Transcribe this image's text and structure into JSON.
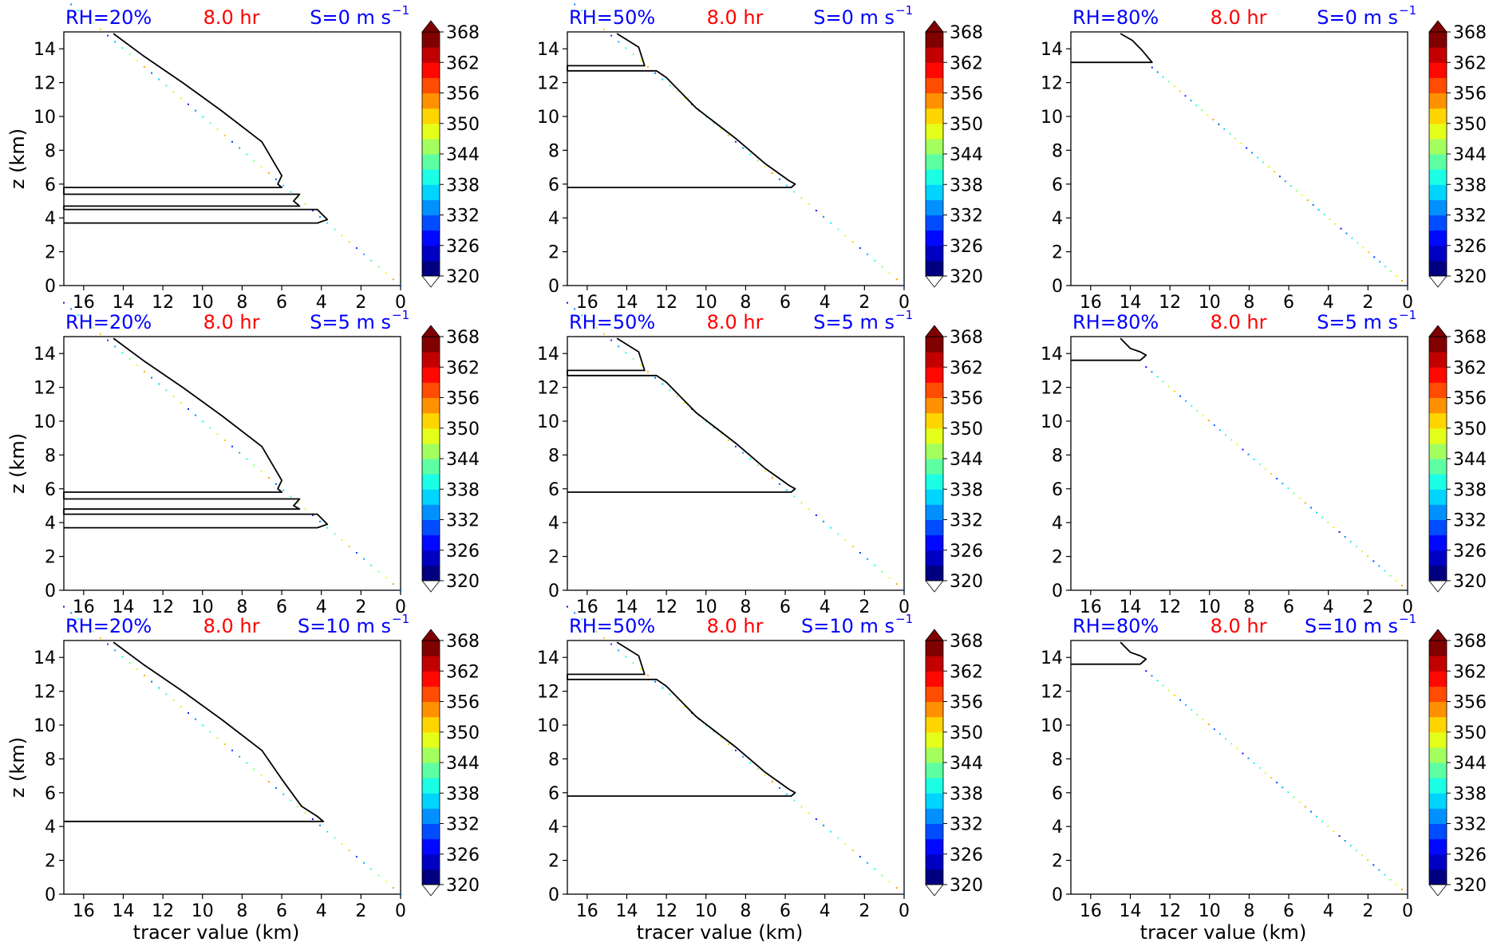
{
  "colors": {
    "rh_title": "#0000ff",
    "time_title": "#ff0000",
    "shear_title": "#0000ff",
    "contour": "#000000"
  },
  "colorbar": {
    "ticks": [
      "320",
      "326",
      "332",
      "338",
      "344",
      "350",
      "356",
      "362",
      "368"
    ],
    "min": 320,
    "max": 368,
    "colormap": "jet",
    "extend": "both"
  },
  "chart_data": [
    {
      "type": "contour",
      "rh_label": "RH=20%",
      "time_label": "8.0 hr",
      "shear_label": "S=0 m s",
      "xlabel": "",
      "ylabel": "z (km)",
      "xlim": [
        17,
        0
      ],
      "ylim": [
        0,
        15
      ],
      "xticks": [
        "16",
        "14",
        "12",
        "10",
        "8",
        "6",
        "4",
        "2",
        "0"
      ],
      "yticks": [
        "0",
        "2",
        "4",
        "6",
        "8",
        "10",
        "12",
        "14"
      ],
      "diagonal_x": [
        17,
        0
      ],
      "contour_x": [
        14.5,
        13,
        11,
        9,
        7,
        6,
        6.2,
        6,
        17,
        17,
        5.1,
        5.4,
        5.1,
        17,
        17,
        4.2,
        3.7,
        4.2,
        17
      ],
      "contour_y": [
        14.9,
        13.6,
        12,
        10.3,
        8.5,
        6.5,
        6.0,
        5.8,
        5.8,
        5.4,
        5.4,
        5.0,
        4.7,
        4.7,
        4.5,
        4.5,
        3.9,
        3.7,
        3.7
      ]
    },
    {
      "type": "contour",
      "rh_label": "RH=50%",
      "time_label": "8.0 hr",
      "shear_label": "S=0 m s",
      "xlabel": "",
      "ylabel": "",
      "xlim": [
        17,
        0
      ],
      "ylim": [
        0,
        15
      ],
      "xticks": [
        "16",
        "14",
        "12",
        "10",
        "8",
        "6",
        "4",
        "2",
        "0"
      ],
      "yticks": [
        "0",
        "2",
        "4",
        "6",
        "8",
        "10",
        "12",
        "14"
      ],
      "diagonal_x": [
        17,
        0
      ],
      "contour_x": [
        14.5,
        13.4,
        13.1,
        17,
        17,
        12.5,
        12.0,
        10.5,
        8.5,
        7,
        5.8,
        5.5,
        5.7,
        17
      ],
      "contour_y": [
        14.9,
        14.1,
        13.0,
        13.0,
        12.7,
        12.7,
        12.3,
        10.5,
        8.7,
        7.2,
        6.2,
        6.0,
        5.8,
        5.8
      ]
    },
    {
      "type": "contour",
      "rh_label": "RH=80%",
      "time_label": "8.0 hr",
      "shear_label": "S=0 m s",
      "xlabel": "",
      "ylabel": "",
      "xlim": [
        17,
        0
      ],
      "ylim": [
        0,
        15
      ],
      "xticks": [
        "16",
        "14",
        "12",
        "10",
        "8",
        "6",
        "4",
        "2",
        "0"
      ],
      "yticks": [
        "0",
        "2",
        "4",
        "6",
        "8",
        "10",
        "12",
        "14"
      ],
      "diagonal_x": [
        12.9,
        0
      ],
      "contour_x": [
        14.5,
        13.9,
        13.4,
        12.9,
        17
      ],
      "contour_y": [
        14.9,
        14.5,
        13.9,
        13.2,
        13.2
      ]
    },
    {
      "type": "contour",
      "rh_label": "RH=20%",
      "time_label": "8.0 hr",
      "shear_label": "S=5 m s",
      "xlabel": "",
      "ylabel": "z (km)",
      "xlim": [
        17,
        0
      ],
      "ylim": [
        0,
        15
      ],
      "xticks": [
        "16",
        "14",
        "12",
        "10",
        "8",
        "6",
        "4",
        "2",
        "0"
      ],
      "yticks": [
        "0",
        "2",
        "4",
        "6",
        "8",
        "10",
        "12",
        "14"
      ],
      "diagonal_x": [
        17,
        0
      ],
      "contour_x": [
        14.5,
        13,
        11,
        9,
        7,
        6,
        6.2,
        6,
        17,
        17,
        5.1,
        5.4,
        5.1,
        17,
        17,
        4.2,
        3.7,
        4.2,
        17
      ],
      "contour_y": [
        14.9,
        13.6,
        12,
        10.3,
        8.5,
        6.5,
        6.0,
        5.8,
        5.8,
        5.4,
        5.4,
        5.0,
        4.8,
        4.8,
        4.5,
        4.5,
        3.9,
        3.7,
        3.7
      ]
    },
    {
      "type": "contour",
      "rh_label": "RH=50%",
      "time_label": "8.0 hr",
      "shear_label": "S=5 m s",
      "xlabel": "",
      "ylabel": "",
      "xlim": [
        17,
        0
      ],
      "ylim": [
        0,
        15
      ],
      "xticks": [
        "16",
        "14",
        "12",
        "10",
        "8",
        "6",
        "4",
        "2",
        "0"
      ],
      "yticks": [
        "0",
        "2",
        "4",
        "6",
        "8",
        "10",
        "12",
        "14"
      ],
      "diagonal_x": [
        17,
        0
      ],
      "contour_x": [
        14.5,
        13.4,
        13.1,
        17,
        17,
        12.5,
        12.0,
        10.5,
        8.5,
        7,
        5.8,
        5.5,
        5.7,
        17
      ],
      "contour_y": [
        14.9,
        14.1,
        13.0,
        13.0,
        12.7,
        12.7,
        12.3,
        10.5,
        8.7,
        7.2,
        6.2,
        6.0,
        5.8,
        5.8
      ]
    },
    {
      "type": "contour",
      "rh_label": "RH=80%",
      "time_label": "8.0 hr",
      "shear_label": "S=5 m s",
      "xlabel": "",
      "ylabel": "",
      "xlim": [
        17,
        0
      ],
      "ylim": [
        0,
        15
      ],
      "xticks": [
        "16",
        "14",
        "12",
        "10",
        "8",
        "6",
        "4",
        "2",
        "0"
      ],
      "yticks": [
        "0",
        "2",
        "4",
        "6",
        "8",
        "10",
        "12",
        "14"
      ],
      "diagonal_x": [
        13.2,
        0
      ],
      "contour_x": [
        14.5,
        14.0,
        13.5,
        13.2,
        13.5,
        17
      ],
      "contour_y": [
        14.9,
        14.3,
        14.1,
        13.9,
        13.6,
        13.6
      ]
    },
    {
      "type": "contour",
      "rh_label": "RH=20%",
      "time_label": "8.0 hr",
      "shear_label": "S=10 m s",
      "xlabel": "tracer value (km)",
      "ylabel": "z (km)",
      "xlim": [
        17,
        0
      ],
      "ylim": [
        0,
        15
      ],
      "xticks": [
        "16",
        "14",
        "12",
        "10",
        "8",
        "6",
        "4",
        "2",
        "0"
      ],
      "yticks": [
        "0",
        "2",
        "4",
        "6",
        "8",
        "10",
        "12",
        "14"
      ],
      "diagonal_x": [
        17,
        0
      ],
      "contour_x": [
        14.5,
        13,
        11,
        9,
        7,
        6,
        5,
        4.2,
        3.9,
        17
      ],
      "contour_y": [
        14.9,
        13.6,
        12,
        10.3,
        8.5,
        6.8,
        5.2,
        4.6,
        4.3,
        4.3
      ]
    },
    {
      "type": "contour",
      "rh_label": "RH=50%",
      "time_label": "8.0 hr",
      "shear_label": "S=10 m s",
      "xlabel": "tracer value (km)",
      "ylabel": "",
      "xlim": [
        17,
        0
      ],
      "ylim": [
        0,
        15
      ],
      "xticks": [
        "16",
        "14",
        "12",
        "10",
        "8",
        "6",
        "4",
        "2",
        "0"
      ],
      "yticks": [
        "0",
        "2",
        "4",
        "6",
        "8",
        "10",
        "12",
        "14"
      ],
      "diagonal_x": [
        17,
        0
      ],
      "contour_x": [
        14.5,
        13.4,
        13.1,
        17,
        17,
        12.5,
        12.0,
        10.5,
        8.5,
        7,
        5.8,
        5.5,
        5.7,
        17
      ],
      "contour_y": [
        14.9,
        14.1,
        13.0,
        13.0,
        12.7,
        12.7,
        12.3,
        10.5,
        8.7,
        7.2,
        6.2,
        6.0,
        5.8,
        5.8
      ]
    },
    {
      "type": "contour",
      "rh_label": "RH=80%",
      "time_label": "8.0 hr",
      "shear_label": "S=10 m s",
      "xlabel": "tracer value (km)",
      "ylabel": "",
      "xlim": [
        17,
        0
      ],
      "ylim": [
        0,
        15
      ],
      "xticks": [
        "16",
        "14",
        "12",
        "10",
        "8",
        "6",
        "4",
        "2",
        "0"
      ],
      "yticks": [
        "0",
        "2",
        "4",
        "6",
        "8",
        "10",
        "12",
        "14"
      ],
      "diagonal_x": [
        13.2,
        0
      ],
      "contour_x": [
        14.5,
        14.0,
        13.5,
        13.2,
        13.5,
        17
      ],
      "contour_y": [
        14.9,
        14.3,
        14.1,
        13.9,
        13.6,
        13.6
      ]
    }
  ]
}
